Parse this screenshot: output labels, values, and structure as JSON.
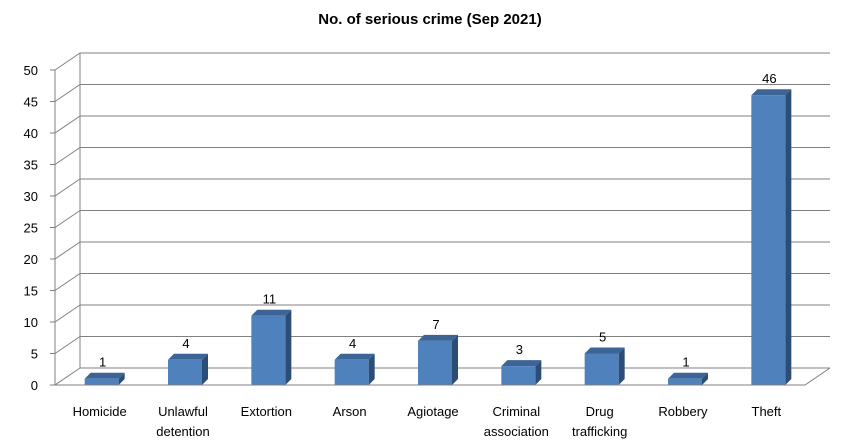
{
  "chart_data": {
    "type": "bar",
    "title": "No. of serious crime (Sep 2021)",
    "categories": [
      "Homicide",
      "Unlawful detention",
      "Extortion",
      "Arson",
      "Agiotage",
      "Criminal association",
      "Drug trafficking",
      "Robbery",
      "Theft"
    ],
    "category_lines": [
      [
        "Homicide"
      ],
      [
        "Unlawful",
        "detention"
      ],
      [
        "Extortion"
      ],
      [
        "Arson"
      ],
      [
        "Agiotage"
      ],
      [
        "Criminal",
        "association"
      ],
      [
        "Drug",
        "trafficking"
      ],
      [
        "Robbery"
      ],
      [
        "Theft"
      ]
    ],
    "values": [
      1,
      4,
      11,
      4,
      7,
      3,
      5,
      1,
      46
    ],
    "data_labels": [
      "1",
      "4",
      "11",
      "4",
      "7",
      "3",
      "5",
      "1",
      "46"
    ],
    "y_ticks": [
      "0",
      "5",
      "10",
      "15",
      "20",
      "25",
      "30",
      "35",
      "40",
      "45",
      "50"
    ],
    "ylim": [
      0,
      50
    ],
    "grid": true,
    "legend": "none",
    "colors": {
      "bar_front": "#4f81bd",
      "bar_side": "#2c4d75",
      "bar_top": "#3c6496",
      "grid": "#808080"
    }
  }
}
